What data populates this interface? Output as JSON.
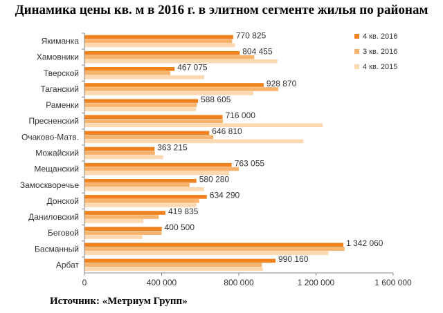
{
  "title": "Динамика цены кв. м в 2016 г. в элитном сегменте жилья по районам",
  "source": "Источник: «Метриум Групп»",
  "chart_data": {
    "type": "bar",
    "orientation": "horizontal",
    "categories": [
      "Якиманка",
      "Хамовники",
      "Тверской",
      "Таганский",
      "Раменки",
      "Пресненский",
      "Очаково-Матв.",
      "Можайский",
      "Мещанский",
      "Замоскворечье",
      "Донской",
      "Даниловский",
      "Беговой",
      "Басманный",
      "Арбат"
    ],
    "series": [
      {
        "name": "4 кв. 2016",
        "color": "#F0821E",
        "values": [
          770825,
          804455,
          467075,
          928870,
          588605,
          716000,
          646810,
          363215,
          763055,
          580280,
          634290,
          419835,
          400500,
          1342060,
          990160
        ]
      },
      {
        "name": "3 кв. 2016",
        "color": "#F7B36B",
        "values": [
          765000,
          880000,
          445000,
          1005000,
          582000,
          718000,
          668000,
          365000,
          800000,
          545000,
          595000,
          385000,
          400000,
          1348000,
          920000
        ]
      },
      {
        "name": "4 кв. 2015",
        "color": "#FCD9B0",
        "values": [
          780000,
          1000000,
          620000,
          875000,
          578000,
          1235000,
          1135000,
          408000,
          750000,
          620000,
          580000,
          305000,
          300000,
          1265000,
          925000
        ]
      }
    ],
    "data_labels": [
      "770 825",
      "804 455",
      "467 075",
      "928 870",
      "588 605",
      "716 000",
      "646 810",
      "363 215",
      "763 055",
      "580 280",
      "634 290",
      "419 835",
      "400 500",
      "1 342 060",
      "990 160"
    ],
    "xticks": [
      0,
      400000,
      800000,
      1200000,
      1600000
    ],
    "xtick_labels": [
      "0",
      "400 000",
      "800 000",
      "1 200 000",
      "1 600 000"
    ],
    "xlim": [
      0,
      1600000
    ],
    "grid": false,
    "legend_position": "top-right"
  }
}
